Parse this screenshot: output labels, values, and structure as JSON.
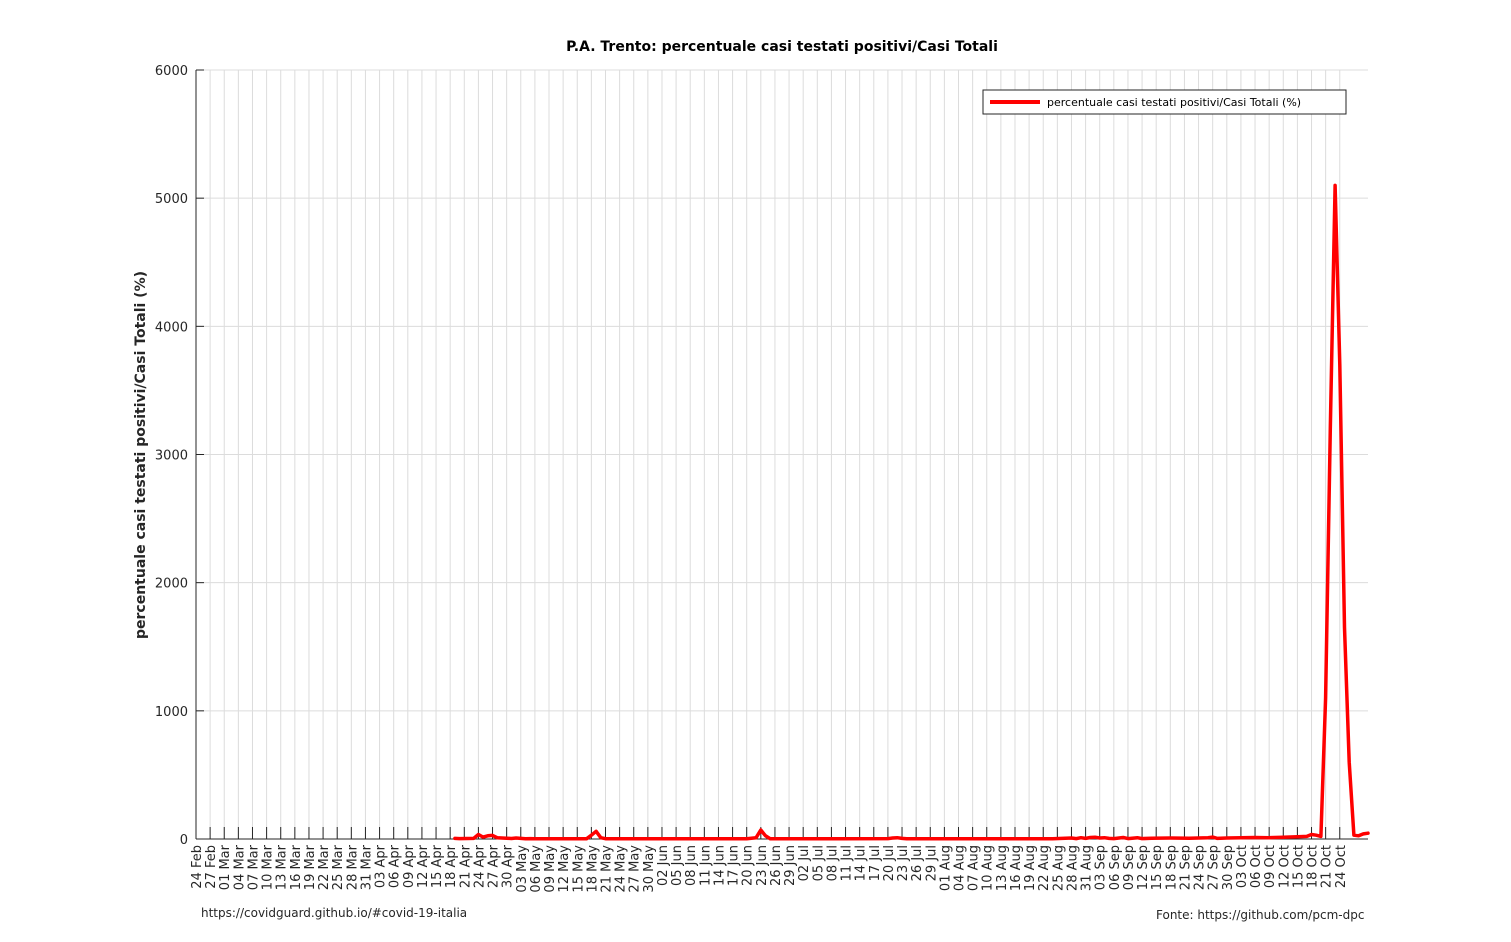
{
  "footer": {
    "left_text": "https://covidguard.github.io/#covid-19-italia",
    "right_text": "Fonte: https://github.com/pcm-dpc"
  },
  "chart_data": {
    "type": "line",
    "title": "P.A. Trento: percentuale casi testati positivi/Casi Totali",
    "xlabel": "",
    "ylabel": "percentuale casi testati positivi/Casi Totali (%)",
    "ylim": [
      0,
      6000
    ],
    "yticks": [
      0,
      1000,
      2000,
      3000,
      4000,
      5000,
      6000
    ],
    "x_range": [
      "24 Feb",
      "30 Oct"
    ],
    "xtick_labels": [
      "24 Feb",
      "27 Feb",
      "01 Mar",
      "04 Mar",
      "07 Mar",
      "10 Mar",
      "13 Mar",
      "16 Mar",
      "19 Mar",
      "22 Mar",
      "25 Mar",
      "28 Mar",
      "31 Mar",
      "03 Apr",
      "06 Apr",
      "09 Apr",
      "12 Apr",
      "15 Apr",
      "18 Apr",
      "21 Apr",
      "24 Apr",
      "27 Apr",
      "30 Apr",
      "03 May",
      "06 May",
      "09 May",
      "12 May",
      "15 May",
      "18 May",
      "21 May",
      "24 May",
      "27 May",
      "30 May",
      "02 Jun",
      "05 Jun",
      "08 Jun",
      "11 Jun",
      "14 Jun",
      "17 Jun",
      "20 Jun",
      "23 Jun",
      "26 Jun",
      "29 Jun",
      "02 Jul",
      "05 Jul",
      "08 Jul",
      "11 Jul",
      "14 Jul",
      "17 Jul",
      "20 Jul",
      "23 Jul",
      "26 Jul",
      "29 Jul",
      "01 Aug",
      "04 Aug",
      "07 Aug",
      "10 Aug",
      "13 Aug",
      "16 Aug",
      "19 Aug",
      "22 Aug",
      "25 Aug",
      "28 Aug",
      "31 Aug",
      "03 Sep",
      "06 Sep",
      "09 Sep",
      "12 Sep",
      "15 Sep",
      "18 Sep",
      "21 Sep",
      "24 Sep",
      "27 Sep",
      "30 Sep",
      "03 Oct",
      "06 Oct",
      "09 Oct",
      "12 Oct",
      "15 Oct",
      "18 Oct",
      "21 Oct",
      "24 Oct"
    ],
    "grid": true,
    "legend_position": "top-right",
    "series": [
      {
        "name": "percentuale casi testati positivi/Casi Totali (%)",
        "color": "#ff0000",
        "points": [
          [
            "19 Apr",
            5
          ],
          [
            "20 Apr",
            3
          ],
          [
            "23 Apr",
            5
          ],
          [
            "24 Apr",
            35
          ],
          [
            "25 Apr",
            15
          ],
          [
            "26 Apr",
            25
          ],
          [
            "27 Apr",
            28
          ],
          [
            "28 Apr",
            10
          ],
          [
            "29 Apr",
            8
          ],
          [
            "30 Apr",
            6
          ],
          [
            "01 May",
            4
          ],
          [
            "02 May",
            8
          ],
          [
            "03 May",
            5
          ],
          [
            "04 May",
            2
          ],
          [
            "05 May",
            3
          ],
          [
            "06 May",
            2
          ],
          [
            "10 May",
            2
          ],
          [
            "15 May",
            2
          ],
          [
            "17 May",
            2
          ],
          [
            "18 May",
            30
          ],
          [
            "19 May",
            60
          ],
          [
            "20 May",
            10
          ],
          [
            "21 May",
            2
          ],
          [
            "31 May",
            2
          ],
          [
            "10 Jun",
            2
          ],
          [
            "20 Jun",
            2
          ],
          [
            "22 Jun",
            10
          ],
          [
            "23 Jun",
            70
          ],
          [
            "24 Jun",
            25
          ],
          [
            "25 Jun",
            2
          ],
          [
            "10 Jul",
            2
          ],
          [
            "20 Jul",
            3
          ],
          [
            "21 Jul",
            8
          ],
          [
            "22 Jul",
            10
          ],
          [
            "23 Jul",
            5
          ],
          [
            "24 Jul",
            2
          ],
          [
            "10 Aug",
            2
          ],
          [
            "24 Aug",
            2
          ],
          [
            "26 Aug",
            5
          ],
          [
            "28 Aug",
            8
          ],
          [
            "29 Aug",
            3
          ],
          [
            "30 Aug",
            10
          ],
          [
            "31 Aug",
            5
          ],
          [
            "01 Sep",
            12
          ],
          [
            "02 Sep",
            14
          ],
          [
            "03 Sep",
            8
          ],
          [
            "04 Sep",
            10
          ],
          [
            "05 Sep",
            5
          ],
          [
            "06 Sep",
            3
          ],
          [
            "08 Sep",
            12
          ],
          [
            "09 Sep",
            3
          ],
          [
            "11 Sep",
            10
          ],
          [
            "12 Sep",
            3
          ],
          [
            "14 Sep",
            6
          ],
          [
            "18 Sep",
            8
          ],
          [
            "22 Sep",
            6
          ],
          [
            "26 Sep",
            10
          ],
          [
            "27 Sep",
            15
          ],
          [
            "28 Sep",
            5
          ],
          [
            "30 Sep",
            8
          ],
          [
            "03 Oct",
            10
          ],
          [
            "06 Oct",
            12
          ],
          [
            "09 Oct",
            10
          ],
          [
            "12 Oct",
            14
          ],
          [
            "15 Oct",
            18
          ],
          [
            "17 Oct",
            20
          ],
          [
            "18 Oct",
            35
          ],
          [
            "19 Oct",
            30
          ],
          [
            "20 Oct",
            20
          ],
          [
            "21 Oct",
            1100
          ],
          [
            "22 Oct",
            3200
          ],
          [
            "23 Oct",
            5100
          ],
          [
            "24 Oct",
            3700
          ],
          [
            "25 Oct",
            1650
          ],
          [
            "26 Oct",
            600
          ],
          [
            "27 Oct",
            30
          ],
          [
            "28 Oct",
            25
          ],
          [
            "29 Oct",
            40
          ],
          [
            "30 Oct",
            45
          ]
        ]
      }
    ]
  }
}
